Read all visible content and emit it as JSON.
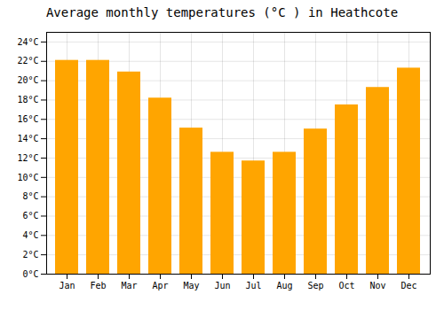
{
  "chart_data": {
    "type": "bar",
    "title": "Average monthly temperatures (°C ) in Heathcote",
    "categories": [
      "Jan",
      "Feb",
      "Mar",
      "Apr",
      "May",
      "Jun",
      "Jul",
      "Aug",
      "Sep",
      "Oct",
      "Nov",
      "Dec"
    ],
    "values": [
      22.1,
      22.1,
      20.9,
      18.2,
      15.1,
      12.6,
      11.7,
      12.6,
      15.0,
      17.5,
      19.3,
      21.3
    ],
    "color": "#FFA500",
    "ylim": [
      0,
      25
    ],
    "yticks": [
      {
        "value": 0,
        "label": "0°C"
      },
      {
        "value": 2,
        "label": "2°C"
      },
      {
        "value": 4,
        "label": "4°C"
      },
      {
        "value": 6,
        "label": "6°C"
      },
      {
        "value": 8,
        "label": "8°C"
      },
      {
        "value": 10,
        "label": "10°C"
      },
      {
        "value": 12,
        "label": "12°C"
      },
      {
        "value": 14,
        "label": "14°C"
      },
      {
        "value": 16,
        "label": "16°C"
      },
      {
        "value": 18,
        "label": "18°C"
      },
      {
        "value": 20,
        "label": "20°C"
      },
      {
        "value": 22,
        "label": "22°C"
      },
      {
        "value": 24,
        "label": "24°C"
      }
    ],
    "grid": true
  }
}
